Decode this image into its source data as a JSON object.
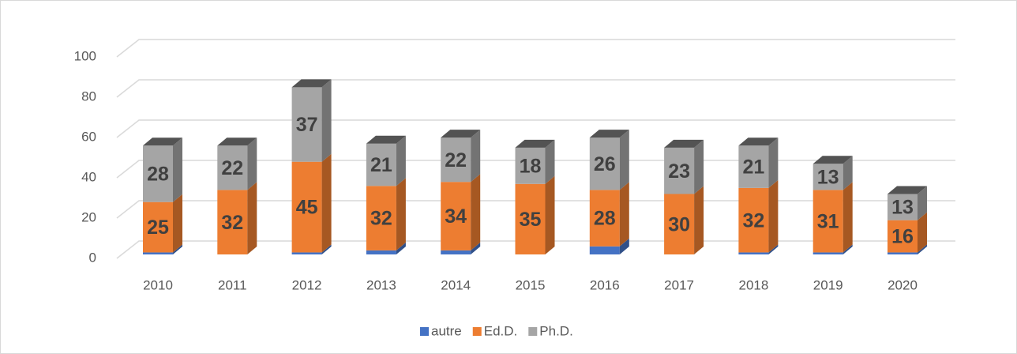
{
  "chart_data": {
    "type": "bar3d_stacked",
    "categories": [
      "2010",
      "2011",
      "2012",
      "2013",
      "2014",
      "2015",
      "2016",
      "2017",
      "2018",
      "2019",
      "2020"
    ],
    "series": [
      {
        "name": "autre",
        "color": "#4472c4",
        "values": [
          1,
          0,
          1,
          2,
          2,
          0,
          4,
          0,
          1,
          1,
          1
        ]
      },
      {
        "name": "Ed.D.",
        "color": "#ed7d31",
        "values": [
          25,
          32,
          45,
          32,
          34,
          35,
          28,
          30,
          32,
          31,
          16
        ],
        "labels": true
      },
      {
        "name": "Ph.D.",
        "color": "#a5a5a5",
        "values": [
          28,
          22,
          37,
          21,
          22,
          18,
          26,
          23,
          21,
          13,
          13
        ],
        "labels": true
      }
    ],
    "ylim": [
      0,
      100
    ],
    "yticks": [
      0,
      20,
      40,
      60,
      80,
      100
    ],
    "grid": true,
    "legend": "bottom"
  }
}
